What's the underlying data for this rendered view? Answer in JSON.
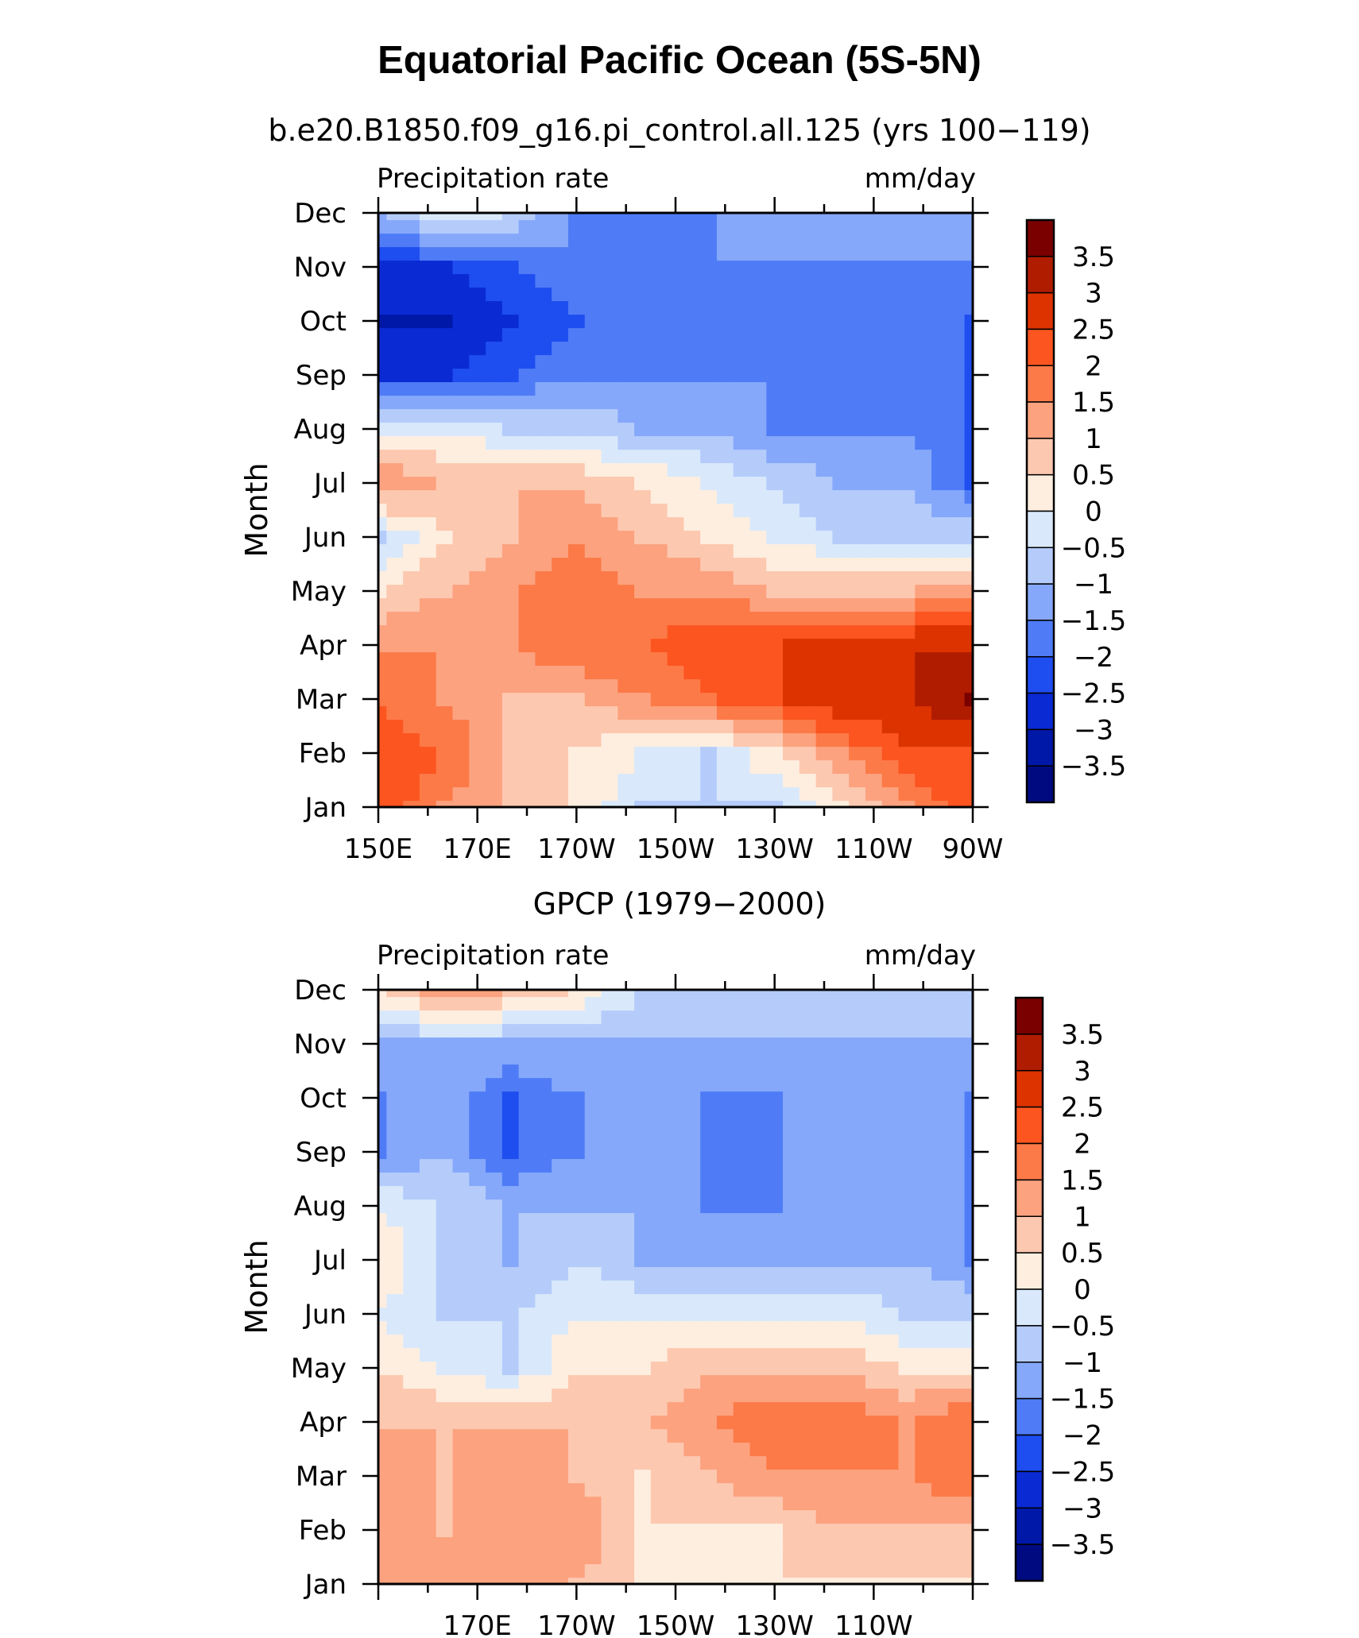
{
  "title": "Equatorial Pacific Ocean (5S-5N)",
  "chart_data": [
    {
      "type": "heatmap",
      "title": "b.e20.B1850.f09_g16.pi_control.all.125 (yrs 100−119)",
      "left_label": "Precipitation rate",
      "right_label": "mm/day",
      "ylabel": "Month",
      "xlabel": "",
      "x_ticks": [
        "150E",
        "170E",
        "170W",
        "150W",
        "130W",
        "110W",
        "90W"
      ],
      "x_values": [
        150,
        170,
        190,
        210,
        230,
        250,
        270
      ],
      "y_ticks": [
        "Jan",
        "Feb",
        "Mar",
        "Apr",
        "May",
        "Jun",
        "Jul",
        "Aug",
        "Sep",
        "Oct",
        "Nov",
        "Dec"
      ],
      "xlim": [
        150,
        270
      ],
      "ylim": [
        1,
        12
      ],
      "grid": [
        [
          2.5,
          1.5,
          1.0,
          0.5,
          -0.5,
          -0.5,
          -0.5,
          0.5,
          1.5,
          2.5
        ],
        [
          2.5,
          2.0,
          1.0,
          0.5,
          0.0,
          -0.5,
          0.5,
          1.5,
          2.5,
          2.5
        ],
        [
          2.0,
          1.5,
          1.0,
          1.0,
          1.5,
          2.0,
          2.5,
          3.0,
          3.0,
          3.5
        ],
        [
          1.5,
          1.5,
          1.5,
          2.0,
          2.0,
          2.5,
          2.5,
          3.0,
          3.0,
          3.0
        ],
        [
          0.5,
          1.0,
          1.5,
          2.0,
          1.5,
          1.5,
          1.0,
          1.0,
          1.0,
          1.5
        ],
        [
          -0.5,
          0.5,
          1.0,
          1.5,
          1.0,
          0.5,
          0.0,
          -0.5,
          -0.5,
          -0.5
        ],
        [
          1.5,
          1.0,
          1.0,
          1.0,
          0.5,
          0.0,
          -0.5,
          -1.0,
          -1.0,
          -2.0
        ],
        [
          0.0,
          0.0,
          -0.5,
          -0.5,
          -1.0,
          -1.0,
          -1.5,
          -1.5,
          -1.5,
          -2.0
        ],
        [
          -2.5,
          -2.5,
          -2.0,
          -1.5,
          -1.5,
          -1.5,
          -1.5,
          -1.5,
          -1.5,
          -2.0
        ],
        [
          -3.0,
          -3.0,
          -2.5,
          -2.0,
          -1.5,
          -1.5,
          -1.5,
          -1.5,
          -1.5,
          -2.0
        ],
        [
          -2.5,
          -2.5,
          -2.0,
          -1.5,
          -1.5,
          -1.5,
          -1.5,
          -1.5,
          -1.5,
          -1.5
        ],
        [
          -1.0,
          0.0,
          -0.5,
          -1.5,
          -1.5,
          -1.5,
          -1.0,
          -1.0,
          -1.0,
          -1.0
        ]
      ]
    },
    {
      "type": "heatmap",
      "title": "GPCP (1979−2000)",
      "left_label": "Precipitation rate",
      "right_label": "mm/day",
      "ylabel": "Month",
      "xlabel": "",
      "x_ticks": [
        "170E",
        "170W",
        "150W",
        "130W",
        "110W"
      ],
      "x_values": [
        170,
        190,
        210,
        230,
        250
      ],
      "y_ticks": [
        "Jan",
        "Feb",
        "Mar",
        "Apr",
        "May",
        "Jun",
        "Jul",
        "Aug",
        "Sep",
        "Oct",
        "Nov",
        "Dec"
      ],
      "xlim": [
        150,
        270
      ],
      "ylim": [
        1,
        12
      ],
      "grid": [
        [
          1.5,
          1.5,
          1.5,
          1.0,
          0.5,
          0.5,
          0.5,
          0.5,
          0.5,
          0.5
        ],
        [
          1.5,
          1.0,
          1.5,
          1.5,
          0.5,
          0.5,
          0.5,
          1.0,
          1.0,
          1.0
        ],
        [
          1.5,
          1.0,
          1.5,
          1.0,
          0.5,
          1.0,
          1.5,
          1.5,
          1.5,
          2.0
        ],
        [
          1.0,
          1.0,
          1.0,
          1.0,
          1.0,
          1.5,
          2.0,
          2.0,
          1.5,
          2.0
        ],
        [
          0.5,
          0.0,
          -0.5,
          0.5,
          0.5,
          1.0,
          1.0,
          1.0,
          0.5,
          0.5
        ],
        [
          0.0,
          -0.5,
          -0.5,
          0.0,
          0.0,
          0.0,
          0.0,
          0.0,
          -0.5,
          -0.5
        ],
        [
          0.5,
          -0.5,
          -1.0,
          -0.5,
          -1.0,
          -1.0,
          -1.0,
          -1.0,
          -1.0,
          -1.5
        ],
        [
          0.0,
          -0.5,
          -1.0,
          -1.0,
          -1.0,
          -1.5,
          -1.5,
          -1.0,
          -1.0,
          -1.5
        ],
        [
          -1.5,
          -1.0,
          -2.0,
          -1.5,
          -1.0,
          -1.5,
          -1.5,
          -1.0,
          -1.0,
          -1.5
        ],
        [
          -1.5,
          -1.0,
          -2.0,
          -1.5,
          -1.0,
          -1.5,
          -1.5,
          -1.0,
          -1.0,
          -1.5
        ],
        [
          -1.0,
          -1.0,
          -1.0,
          -1.0,
          -1.0,
          -1.0,
          -1.0,
          -1.0,
          -1.0,
          -1.0
        ],
        [
          0.5,
          1.5,
          1.0,
          0.5,
          -0.5,
          -0.5,
          -0.5,
          -0.5,
          -0.5,
          -0.5
        ]
      ]
    }
  ],
  "colorbar": {
    "labels": [
      "3.5",
      "3",
      "2.5",
      "2",
      "1.5",
      "1",
      "0.5",
      "0",
      "−0.5",
      "−1",
      "−1.5",
      "−2",
      "−2.5",
      "−3",
      "−3.5"
    ],
    "levels": [
      3.5,
      3,
      2.5,
      2,
      1.5,
      1,
      0.5,
      0,
      -0.5,
      -1,
      -1.5,
      -2,
      -2.5,
      -3,
      -3.5
    ],
    "colors": [
      "#7a0000",
      "#b01c00",
      "#dd3300",
      "#fc5520",
      "#fc7a48",
      "#fca27f",
      "#fdc8b0",
      "#feeedf",
      "#d9e9fb",
      "#b5ccfb",
      "#86a8fa",
      "#4f7cf6",
      "#1e4df0",
      "#0a2ad4",
      "#0018a8",
      "#000a80"
    ]
  }
}
